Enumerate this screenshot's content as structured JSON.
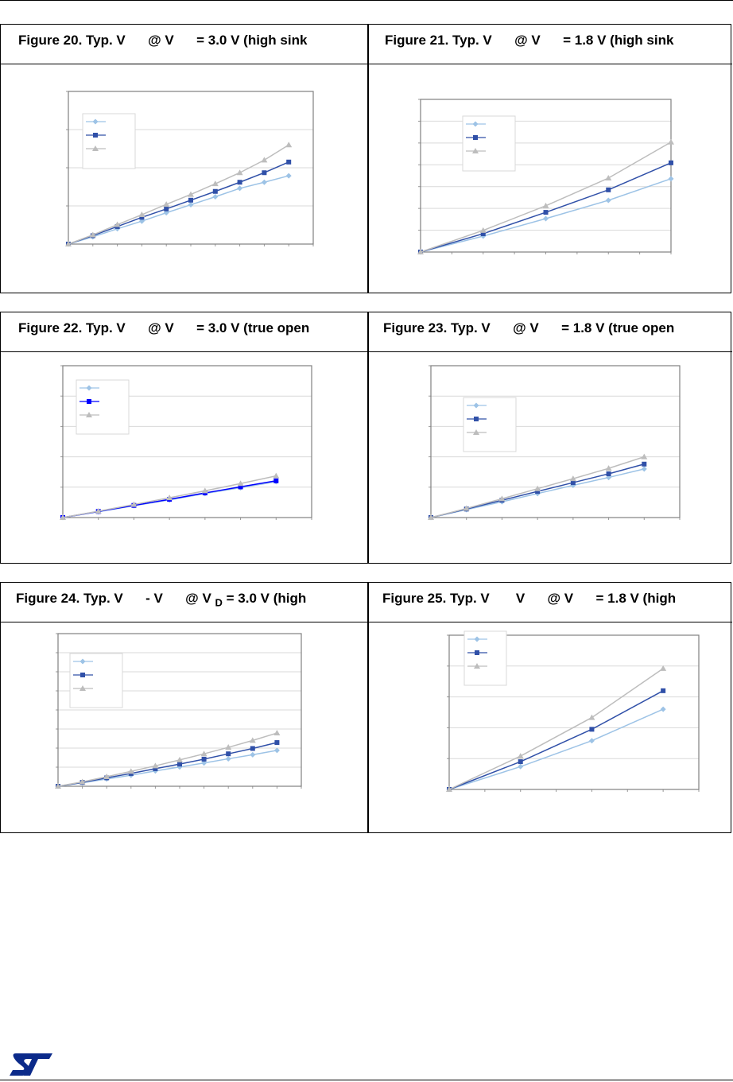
{
  "figures": [
    {
      "title": "Figure 20. Typ. V      @ V      = 3.0 V (high sink"
    },
    {
      "title": "Figure 21. Typ. V      @ V      = 1.8 V (high sink"
    },
    {
      "title": "Figure 22. Typ. V      @ V      = 3.0 V (true open"
    },
    {
      "title": "Figure 23. Typ. V      @ V      = 1.8 V (true open"
    },
    {
      "title_a": "Figure 24. Typ. V      - V      @ V ",
      "title_sub": "D",
      "title_b": " = 3.0 V (high"
    },
    {
      "title": "Figure 25. Typ. V       V      @ V      = 1.8 V (high"
    }
  ],
  "colors": {
    "series_light": "#9dc3e6",
    "series_dark": "#3050a8",
    "series_dark_fig22": "#0000ff",
    "series_gray": "#bdbdbd"
  },
  "logo": {
    "text": "ST"
  },
  "chart_data": [
    {
      "type": "line",
      "title": "Figure 20",
      "x": [
        0,
        1,
        2,
        3,
        4,
        5,
        6,
        7,
        8,
        9
      ],
      "xlim": [
        0,
        10
      ],
      "ylim": [
        0,
        4
      ],
      "grid": true,
      "legend": "top-left",
      "series": [
        {
          "marker": "diamond",
          "values": [
            0,
            0.19,
            0.4,
            0.6,
            0.82,
            1.03,
            1.24,
            1.46,
            1.62,
            1.79
          ]
        },
        {
          "marker": "square",
          "values": [
            0,
            0.22,
            0.46,
            0.7,
            0.92,
            1.15,
            1.38,
            1.62,
            1.87,
            2.15
          ]
        },
        {
          "marker": "triangle",
          "values": [
            0,
            0.24,
            0.51,
            0.77,
            1.04,
            1.3,
            1.58,
            1.87,
            2.2,
            2.6
          ]
        }
      ]
    },
    {
      "type": "line",
      "title": "Figure 21",
      "x": [
        0,
        2,
        4,
        6,
        8
      ],
      "xlim": [
        0,
        8
      ],
      "ylim": [
        0,
        7
      ],
      "grid": true,
      "legend": "top-left",
      "series": [
        {
          "marker": "diamond",
          "values": [
            0,
            0.73,
            1.53,
            2.37,
            3.36
          ]
        },
        {
          "marker": "square",
          "values": [
            0,
            0.84,
            1.82,
            2.85,
            4.09
          ]
        },
        {
          "marker": "triangle",
          "values": [
            0,
            0.99,
            2.12,
            3.39,
            5.04
          ]
        }
      ]
    },
    {
      "type": "line",
      "title": "Figure 22",
      "x": [
        0,
        1,
        2,
        3,
        4,
        5,
        6
      ],
      "xlim": [
        0,
        7
      ],
      "ylim": [
        0,
        5
      ],
      "grid": true,
      "legend": "top-left",
      "series": [
        {
          "marker": "diamond",
          "values": [
            0,
            0.19,
            0.39,
            0.58,
            0.79,
            0.98,
            1.18
          ]
        },
        {
          "marker": "square",
          "values": [
            0,
            0.2,
            0.4,
            0.6,
            0.81,
            1.01,
            1.21
          ]
        },
        {
          "marker": "triangle",
          "values": [
            0,
            0.21,
            0.43,
            0.65,
            0.88,
            1.12,
            1.37
          ]
        }
      ]
    },
    {
      "type": "line",
      "title": "Figure 23",
      "x": [
        0,
        1,
        2,
        3,
        4,
        5,
        6
      ],
      "xlim": [
        0,
        7
      ],
      "ylim": [
        0,
        5
      ],
      "grid": true,
      "legend": "top-left",
      "series": [
        {
          "marker": "diamond",
          "values": [
            0,
            0.26,
            0.52,
            0.79,
            1.06,
            1.32,
            1.6
          ]
        },
        {
          "marker": "square",
          "values": [
            0,
            0.28,
            0.57,
            0.86,
            1.15,
            1.44,
            1.76
          ]
        },
        {
          "marker": "triangle",
          "values": [
            0,
            0.3,
            0.62,
            0.95,
            1.28,
            1.62,
            2.0
          ]
        }
      ]
    },
    {
      "type": "line",
      "title": "Figure 24",
      "x": [
        0,
        1,
        2,
        3,
        4,
        5,
        6,
        7,
        8,
        9
      ],
      "xlim": [
        0,
        10
      ],
      "ylim": [
        0,
        8
      ],
      "grid": true,
      "legend": "top-left",
      "series": [
        {
          "marker": "diamond",
          "values": [
            0,
            0.18,
            0.38,
            0.58,
            0.8,
            1.01,
            1.22,
            1.44,
            1.65,
            1.88
          ]
        },
        {
          "marker": "square",
          "values": [
            0,
            0.2,
            0.44,
            0.67,
            0.92,
            1.16,
            1.42,
            1.7,
            1.98,
            2.29
          ]
        },
        {
          "marker": "triangle",
          "values": [
            0,
            0.23,
            0.5,
            0.78,
            1.07,
            1.38,
            1.7,
            2.04,
            2.4,
            2.79
          ]
        }
      ]
    },
    {
      "type": "line",
      "title": "Figure 25",
      "x": [
        0,
        2,
        4,
        6
      ],
      "xlim": [
        0,
        7
      ],
      "ylim": [
        0,
        5
      ],
      "grid": true,
      "legend": "top-left",
      "series": [
        {
          "marker": "diamond",
          "values": [
            0,
            0.74,
            1.58,
            2.6
          ]
        },
        {
          "marker": "square",
          "values": [
            0,
            0.9,
            1.95,
            3.2
          ]
        },
        {
          "marker": "triangle",
          "values": [
            0,
            1.08,
            2.33,
            3.92
          ]
        }
      ]
    }
  ]
}
